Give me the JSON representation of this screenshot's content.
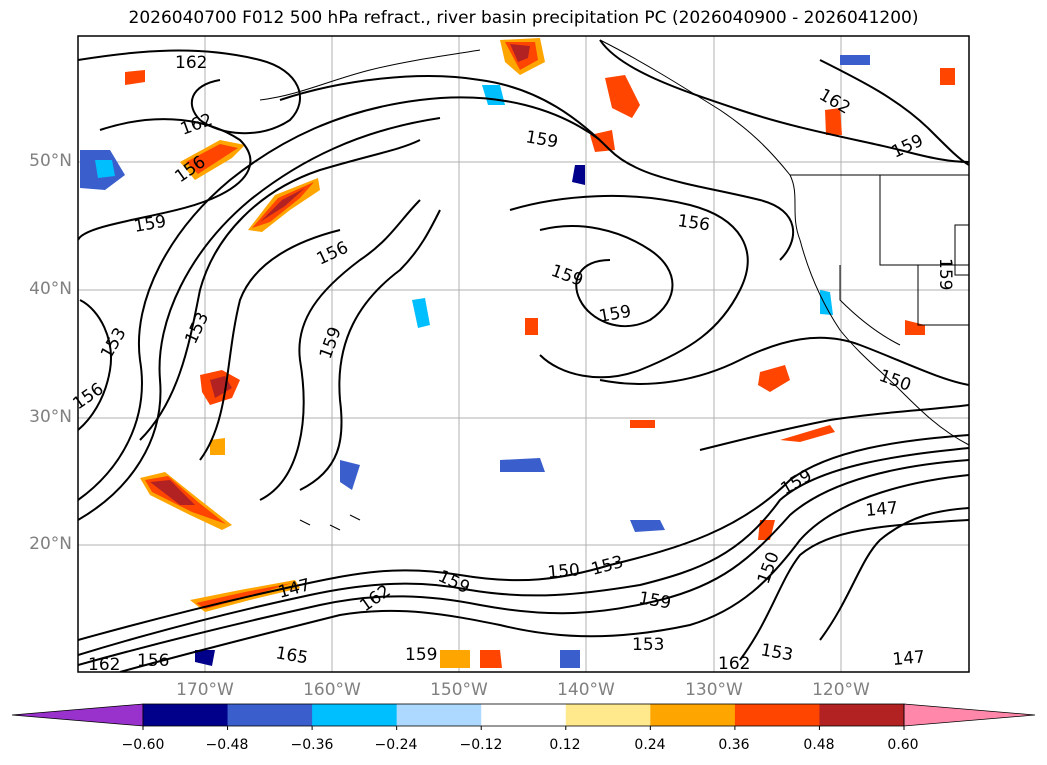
{
  "title": "2026040700 F012 500 hPa refract., river basin precipitation PC (2026040900 - 2026041200)",
  "lat_labels": [
    "50°N",
    "40°N",
    "30°N",
    "20°N"
  ],
  "lon_labels": [
    "170°W",
    "160°W",
    "150°W",
    "140°W",
    "130°W",
    "120°W"
  ],
  "colorbar": {
    "ticks": [
      "−0.60",
      "−0.48",
      "−0.36",
      "−0.24",
      "−0.12",
      "0.12",
      "0.24",
      "0.36",
      "0.48",
      "0.60"
    ],
    "colors": [
      "#9932cc",
      "#00008b",
      "#3a5fcd",
      "#00bfff",
      "#add8ff",
      "#ffffff",
      "#ffe98c",
      "#ffa500",
      "#ff4500",
      "#b22222",
      "#ff88aa"
    ]
  },
  "contour_labels": [
    {
      "text": "162"
    },
    {
      "text": "162"
    },
    {
      "text": "156"
    },
    {
      "text": "159"
    },
    {
      "text": "153"
    },
    {
      "text": "153"
    },
    {
      "text": "156"
    },
    {
      "text": "156"
    },
    {
      "text": "159"
    },
    {
      "text": "159"
    },
    {
      "text": "159"
    },
    {
      "text": "156"
    },
    {
      "text": "159"
    },
    {
      "text": "162"
    },
    {
      "text": "159"
    },
    {
      "text": "159"
    },
    {
      "text": "150"
    },
    {
      "text": "159"
    },
    {
      "text": "147"
    },
    {
      "text": "150"
    },
    {
      "text": "150"
    },
    {
      "text": "153"
    },
    {
      "text": "159"
    },
    {
      "text": "147"
    },
    {
      "text": "162"
    },
    {
      "text": "159"
    },
    {
      "text": "162"
    },
    {
      "text": "156"
    },
    {
      "text": "165"
    },
    {
      "text": "159"
    },
    {
      "text": "153"
    },
    {
      "text": "162"
    },
    {
      "text": "153"
    },
    {
      "text": "147"
    }
  ]
}
